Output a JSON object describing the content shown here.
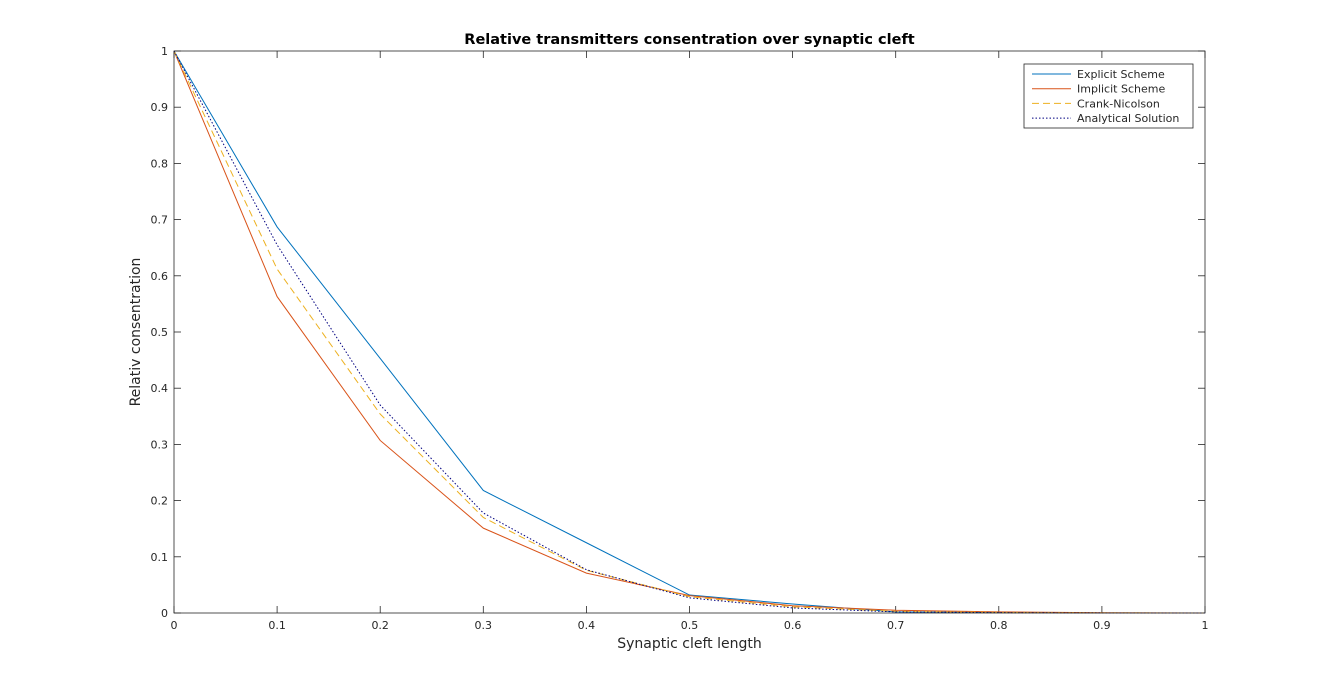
{
  "chart_data": {
    "type": "line",
    "title": "Relative transmitters consentration over synaptic cleft",
    "xlabel": "Synaptic cleft length",
    "ylabel": "Relativ consentration",
    "xlim": [
      0,
      1
    ],
    "ylim": [
      0,
      1
    ],
    "xticks": [
      "0",
      "0.1",
      "0.2",
      "0.3",
      "0.4",
      "0.5",
      "0.6",
      "0.7",
      "0.8",
      "0.9",
      "1"
    ],
    "yticks": [
      "0",
      "0.1",
      "0.2",
      "0.3",
      "0.4",
      "0.5",
      "0.6",
      "0.7",
      "0.8",
      "0.9",
      "1"
    ],
    "grid": false,
    "legend_position": "top-right",
    "x": [
      0,
      0.1,
      0.2,
      0.3,
      0.4,
      0.5,
      0.6,
      0.7,
      0.8,
      0.9,
      1.0
    ],
    "series": [
      {
        "name": "Explicit Scheme",
        "color": "#0072BD",
        "style": "solid",
        "values": [
          1.0,
          0.687,
          0.453,
          0.218,
          0.125,
          0.032,
          0.016,
          0.002,
          0.001,
          0.0,
          0.0
        ]
      },
      {
        "name": "Implicit Scheme",
        "color": "#D95319",
        "style": "solid",
        "values": [
          1.0,
          0.563,
          0.307,
          0.151,
          0.071,
          0.031,
          0.013,
          0.005,
          0.002,
          0.0005,
          0.0
        ]
      },
      {
        "name": "Crank-Nicolson",
        "color": "#EDB120",
        "style": "dashed",
        "values": [
          1.0,
          0.612,
          0.354,
          0.17,
          0.076,
          0.029,
          0.011,
          0.003,
          0.001,
          0.0002,
          0.0
        ]
      },
      {
        "name": "Analytical Solution",
        "color": "#000080",
        "style": "dotted",
        "values": [
          1.0,
          0.655,
          0.37,
          0.178,
          0.077,
          0.027,
          0.009,
          0.002,
          0.0006,
          0.0001,
          0.0
        ]
      }
    ]
  }
}
